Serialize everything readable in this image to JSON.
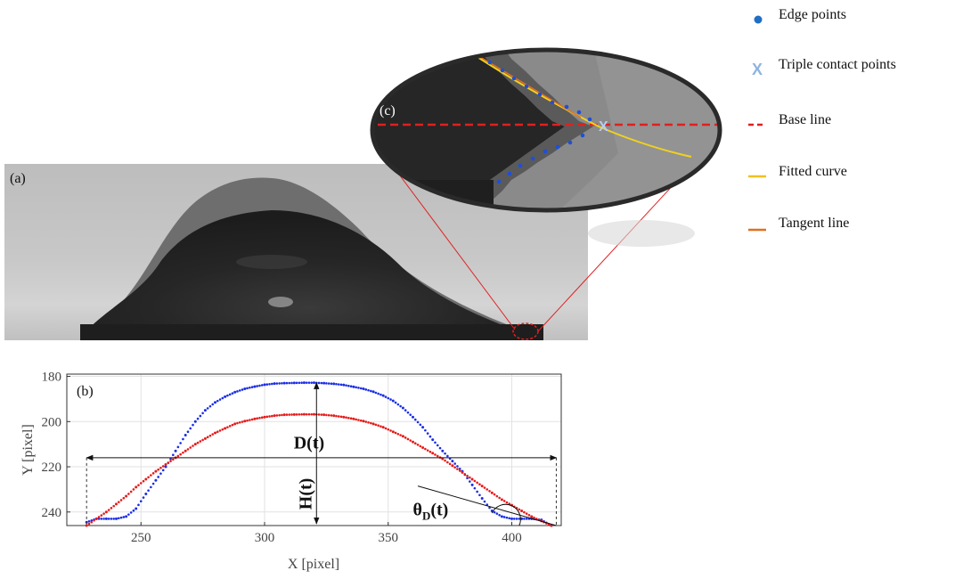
{
  "panels": {
    "a_label": "(a)",
    "b_label": "(b)",
    "c_label": "(c)"
  },
  "legend": [
    {
      "label": "Edge points",
      "symbol": "dot",
      "color": "#1f6fc5"
    },
    {
      "label": "Triple contact points",
      "symbol": "x",
      "color": "#8fb4e0"
    },
    {
      "label": "Base line",
      "symbol": "dash",
      "color": "#e02020"
    },
    {
      "label": "Fitted curve",
      "symbol": "line",
      "color": "#f0c020"
    },
    {
      "label": "Tangent line",
      "symbol": "line",
      "color": "#e07020"
    }
  ],
  "zoom": {
    "triple_marker": "X"
  },
  "chart_data": {
    "type": "scatter",
    "xlabel": "X [pixel]",
    "ylabel": "Y [pixel]",
    "xlim": [
      220,
      420
    ],
    "ylim": [
      246,
      179
    ],
    "xticks": [
      250,
      300,
      350,
      400
    ],
    "yticks": [
      180,
      200,
      220,
      240
    ],
    "grid": true,
    "annotations": {
      "diameter": "D(t)",
      "height": "H(t)",
      "angle": "θ",
      "angle_sub": "D",
      "angle_arg": "(t)"
    },
    "series": [
      {
        "color": "#1a2ee6",
        "x": [
          228,
          232,
          236,
          240,
          244,
          248,
          252,
          256,
          260,
          264,
          268,
          272,
          276,
          280,
          284,
          288,
          292,
          296,
          300,
          304,
          308,
          312,
          316,
          320,
          324,
          328,
          332,
          336,
          340,
          344,
          348,
          352,
          356,
          360,
          364,
          368,
          372,
          376,
          380,
          384,
          388,
          392,
          396,
          400,
          404,
          408,
          412,
          416
        ],
        "y": [
          244.5,
          243.0,
          243.0,
          243.0,
          242.0,
          238.5,
          232.0,
          226.0,
          220.0,
          213.0,
          206.0,
          200.0,
          195.0,
          191.5,
          189.0,
          187.0,
          185.5,
          184.5,
          183.7,
          183.2,
          183.0,
          182.9,
          182.8,
          182.8,
          183.0,
          183.3,
          183.8,
          184.6,
          185.5,
          186.8,
          188.5,
          190.8,
          194.0,
          198.0,
          202.5,
          208.0,
          213.0,
          217.5,
          222.0,
          228.0,
          234.0,
          239.5,
          242.0,
          243.0,
          243.0,
          243.0,
          243.5,
          246.0
        ]
      },
      {
        "color": "#e61a1a",
        "x": [
          228,
          232,
          236,
          240,
          244,
          248,
          252,
          256,
          260,
          264,
          268,
          272,
          276,
          280,
          284,
          288,
          292,
          296,
          300,
          304,
          308,
          312,
          316,
          320,
          324,
          328,
          332,
          336,
          340,
          344,
          348,
          352,
          356,
          360,
          364,
          368,
          372,
          376,
          380,
          384,
          388,
          392,
          396,
          400,
          404,
          408,
          412,
          416
        ],
        "y": [
          246.0,
          243.0,
          240.0,
          236.5,
          233.0,
          229.0,
          225.5,
          222.0,
          219.0,
          216.0,
          213.0,
          210.0,
          207.5,
          205.0,
          203.0,
          201.0,
          199.8,
          198.8,
          198.0,
          197.4,
          197.0,
          196.9,
          196.8,
          196.8,
          197.0,
          197.4,
          198.0,
          198.8,
          199.8,
          201.0,
          202.5,
          204.5,
          206.5,
          209.0,
          211.5,
          214.0,
          216.5,
          219.5,
          222.5,
          225.5,
          228.5,
          231.5,
          234.5,
          237.0,
          239.5,
          242.0,
          244.0,
          246.0
        ]
      }
    ]
  }
}
